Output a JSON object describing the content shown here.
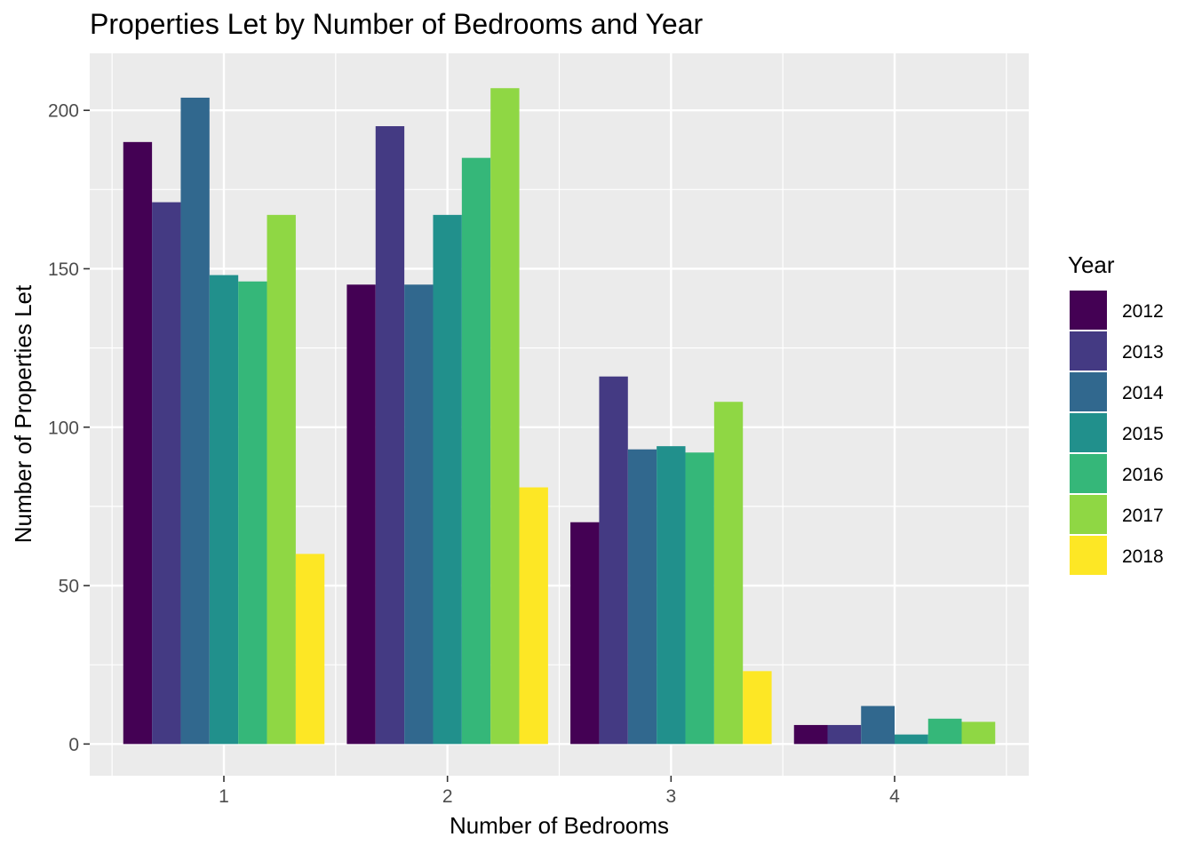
{
  "chart_data": {
    "type": "bar",
    "title": "Properties Let by Number of Bedrooms and Year",
    "xlabel": "Number of Bedrooms",
    "ylabel": "Number of Properties Let",
    "categories": [
      "1",
      "2",
      "3",
      "4"
    ],
    "ylim": [
      -10,
      218
    ],
    "yticks": [
      0,
      50,
      100,
      150,
      200
    ],
    "grid": true,
    "legend_title": "Year",
    "legend_position": "right",
    "series": [
      {
        "name": "2012",
        "color": "#440154",
        "values": [
          190,
          145,
          70,
          6
        ]
      },
      {
        "name": "2013",
        "color": "#443A83",
        "values": [
          171,
          195,
          116,
          6
        ]
      },
      {
        "name": "2014",
        "color": "#31688E",
        "values": [
          204,
          145,
          93,
          12
        ]
      },
      {
        "name": "2015",
        "color": "#21908C",
        "values": [
          148,
          167,
          94,
          3
        ]
      },
      {
        "name": "2016",
        "color": "#35B779",
        "values": [
          146,
          185,
          92,
          8
        ]
      },
      {
        "name": "2017",
        "color": "#8FD744",
        "values": [
          167,
          207,
          108,
          7
        ]
      },
      {
        "name": "2018",
        "color": "#FDE725",
        "values": [
          60,
          81,
          23,
          null
        ]
      }
    ]
  }
}
